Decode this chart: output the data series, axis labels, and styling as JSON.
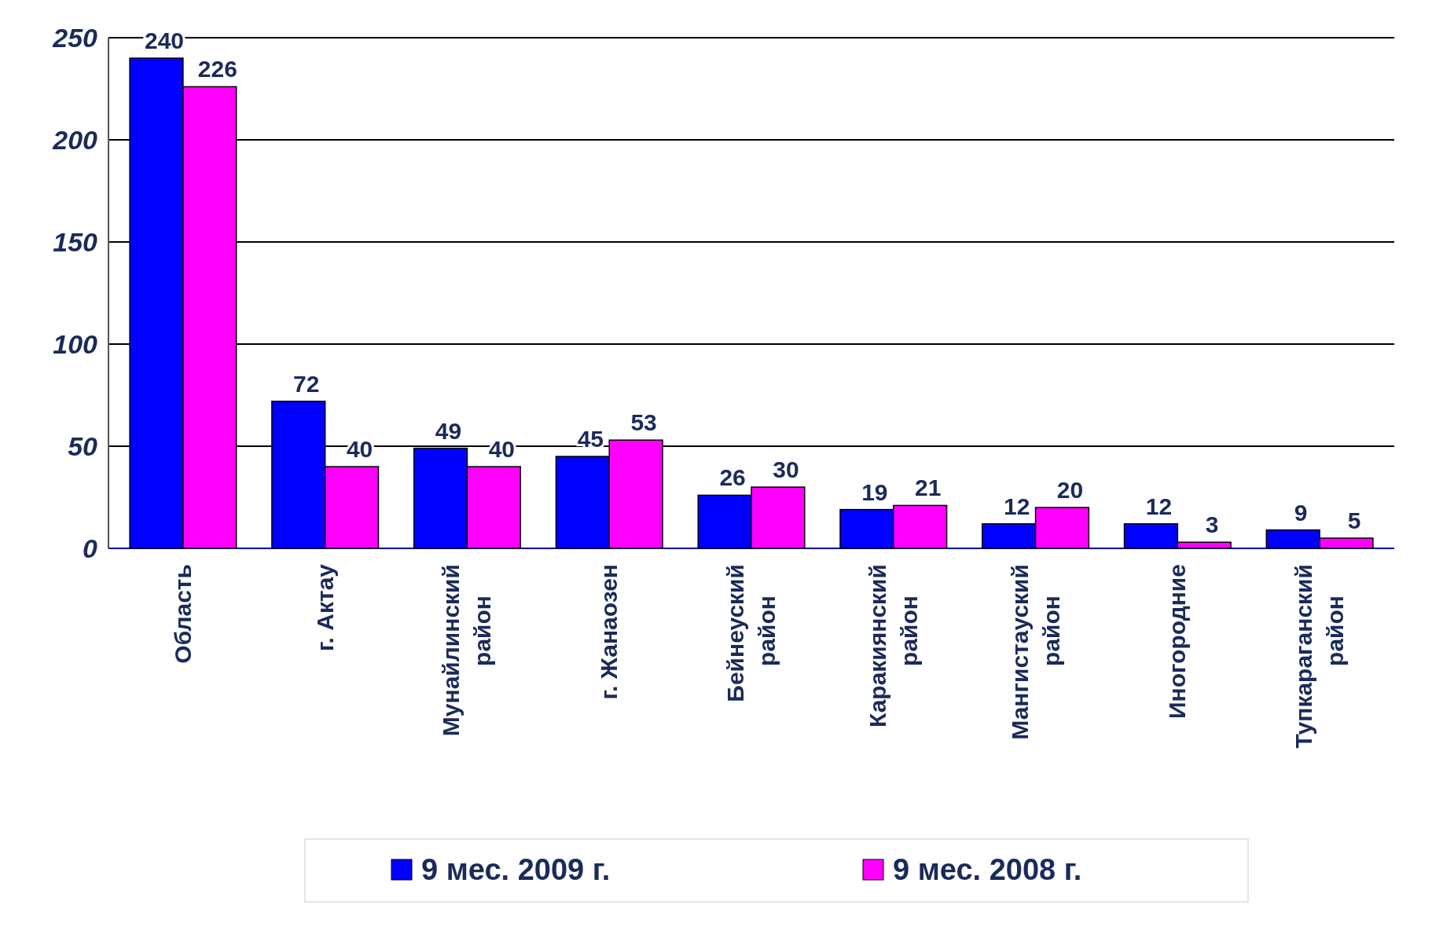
{
  "chart_data": {
    "type": "bar",
    "categories": [
      "Область",
      "г. Актау",
      "Мунайлинский\nрайон",
      "г. Жанаозен",
      "Бейнеуский\nрайон",
      "Каракиянский\nрайон",
      "Мангистауский\nрайон",
      "Иногородние",
      "Тупкараганский\nрайон"
    ],
    "series": [
      {
        "name": "9 мес. 2009 г.",
        "color": "#0000ff",
        "values": [
          240,
          72,
          49,
          45,
          26,
          19,
          12,
          12,
          9
        ]
      },
      {
        "name": "9 мес. 2008 г.",
        "color": "#ff00ff",
        "values": [
          226,
          40,
          40,
          53,
          30,
          21,
          20,
          3,
          5
        ]
      }
    ],
    "ylim": [
      0,
      250
    ],
    "yticks": [
      0,
      50,
      100,
      150,
      200,
      250
    ],
    "grid": "y",
    "legend": "bottom",
    "data_labels": true
  }
}
